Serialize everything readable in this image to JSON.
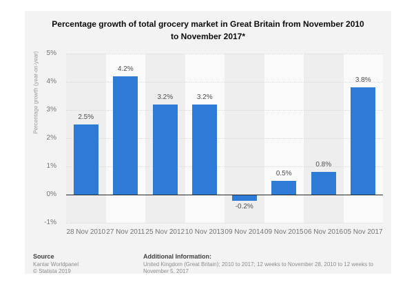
{
  "title": "Percentage growth of total grocery market in Great Britain from November 2010 to November 2017*",
  "chart_data": {
    "type": "bar",
    "categories": [
      "28 Nov 2010",
      "27 Nov 2011",
      "25 Nov 2012",
      "10 Nov 2013",
      "09 Nov 2014",
      "09 Nov 2015",
      "06 Nov 2016",
      "05 Nov 2017"
    ],
    "values": [
      2.5,
      4.2,
      3.2,
      3.2,
      -0.2,
      0.5,
      0.8,
      3.8
    ],
    "value_labels": [
      "2.5%",
      "4.2%",
      "3.2%",
      "3.2%",
      "-0.2%",
      "0.5%",
      "0.8%",
      "3.8%"
    ],
    "title": "Percentage growth of total grocery market in Great Britain from November 2010 to November 2017*",
    "xlabel": "",
    "ylabel": "Percentage growth (year-on-year)",
    "ylim": [
      -1,
      5
    ],
    "yticks": [
      {
        "value": 5,
        "label": "5%"
      },
      {
        "value": 4,
        "label": "4%"
      },
      {
        "value": 3,
        "label": "3%"
      },
      {
        "value": 2,
        "label": "2%"
      },
      {
        "value": 1,
        "label": "1%"
      },
      {
        "value": 0,
        "label": "0%"
      },
      {
        "value": -1,
        "label": "-1%"
      }
    ],
    "grid": "horizontal-dotted",
    "legend": "none",
    "bar_color": "#2d7bd6"
  },
  "footer": {
    "source_label": "Source",
    "source_lines": [
      "Kantar Worldpanel",
      "© Statista 2019"
    ],
    "additional_label": "Additional Information:",
    "additional_text": "United Kingdom (Great Britain); 2010 to 2017; 12 weeks to November 28, 2010 to 12 weeks to November 5, 2017"
  },
  "colors": {
    "card_background": "#f3f3f3",
    "bar": "#2d7bd6",
    "gridline": "#d9d9d9",
    "zero_axis": "#262626",
    "tick_text": "#737373"
  }
}
